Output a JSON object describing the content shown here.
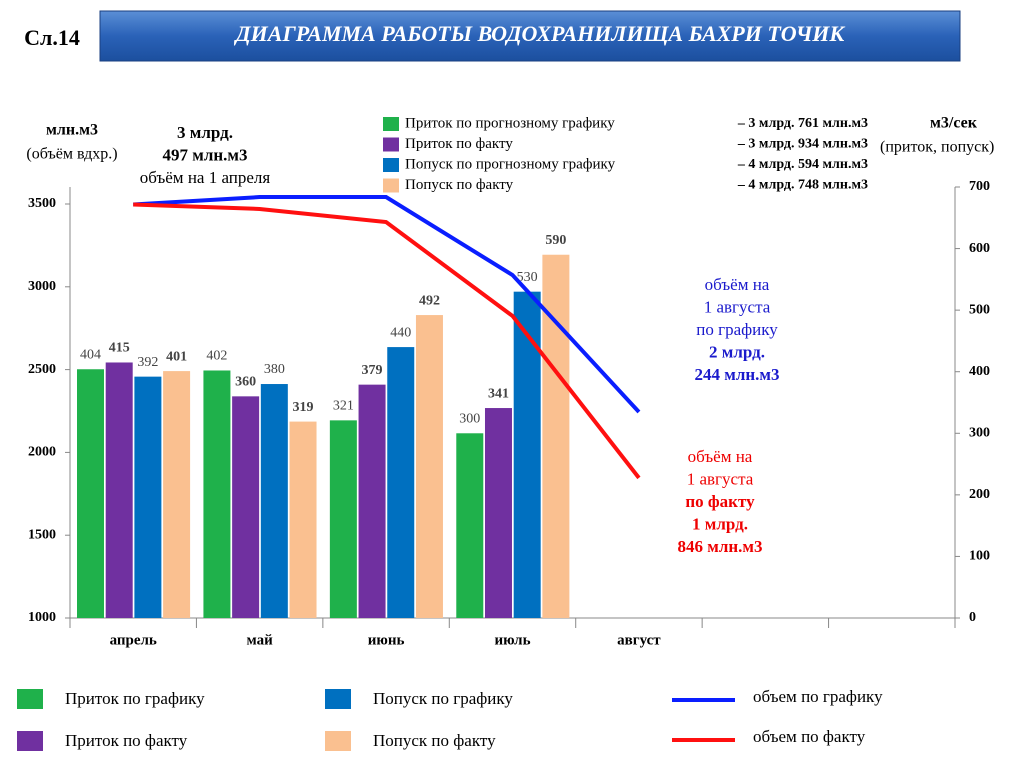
{
  "slide_label": "Сл.14",
  "chart_data": {
    "type": "bar",
    "title": "ДИАГРАММА РАБОТЫ ВОДОХРАНИЛИЩА БАХРИ ТОЧИК",
    "categories": [
      "апрель",
      "май",
      "июнь",
      "июль",
      "август"
    ],
    "ylim": [
      1000,
      3500
    ],
    "yticks": [
      1000,
      1500,
      2000,
      2500,
      3000,
      3500
    ],
    "y2lim": [
      0,
      700
    ],
    "y2ticks": [
      0,
      100,
      200,
      300,
      400,
      500,
      600,
      700
    ],
    "y_label": [
      "млн.м3",
      "(объём вдхр.)"
    ],
    "y2_label": [
      "м3/сек",
      "(приток, попуск)"
    ],
    "series": [
      {
        "name": "Приток по графику",
        "type": "bar",
        "axis": "y2",
        "color": "#1fb14b",
        "label_bold": false,
        "values": [
          404,
          402,
          321,
          300,
          null
        ]
      },
      {
        "name": "Приток по факту",
        "type": "bar",
        "axis": "y2",
        "color": "#7030a0",
        "label_bold": true,
        "values": [
          415,
          360,
          379,
          341,
          null
        ]
      },
      {
        "name": "Попуск по графику",
        "type": "bar",
        "axis": "y2",
        "color": "#0070c0",
        "label_bold": false,
        "values": [
          392,
          380,
          440,
          530,
          null
        ]
      },
      {
        "name": "Попуск по факту",
        "type": "bar",
        "axis": "y2",
        "color": "#fac090",
        "label_bold": true,
        "values": [
          401,
          319,
          492,
          590,
          null
        ]
      },
      {
        "name": "объем по графику",
        "type": "line",
        "color": "#0a1eff",
        "values": [
          3497,
          3542,
          3542,
          3071,
          2244
        ]
      },
      {
        "name": "объем по факту",
        "type": "line",
        "color": "#ff1010",
        "values": [
          3497,
          3470,
          3391,
          2824,
          1846
        ]
      }
    ],
    "top_legend": [
      {
        "name": "Приток по прогнозному графику",
        "total": "– 3 млрд.  761 млн.м3"
      },
      {
        "name": "Приток по факту",
        "total": "–  3 млрд.  934 млн.м3"
      },
      {
        "name": "Попуск по прогнозному  графику",
        "total": "–  4 млрд.  594 млн.м3"
      },
      {
        "name": "Попуск по факту",
        "total": "–  4 млрд.  748 млн.м3"
      }
    ],
    "annotations": [
      {
        "color": "#000000",
        "lines": [
          {
            "text": "3 млрд.",
            "bold": true
          },
          {
            "text": "497 млн.м3",
            "bold": true
          },
          {
            "text": "объём на 1 апреля",
            "bold": false
          }
        ]
      },
      {
        "color": "#1a1acc",
        "lines": [
          {
            "text": "объём на",
            "bold": false
          },
          {
            "text": "1 августа",
            "bold": false
          },
          {
            "text": "по графику",
            "bold": false
          },
          {
            "text": "2 млрд.",
            "bold": true
          },
          {
            "text": "244 млн.м3",
            "bold": true
          }
        ]
      },
      {
        "color": "#ee0000",
        "lines": [
          {
            "text": "объём на",
            "bold": false
          },
          {
            "text": "1 августа",
            "bold": false
          },
          {
            "text": "по факту",
            "bold": true
          },
          {
            "text": "1 млрд.",
            "bold": true
          },
          {
            "text": "846 млн.м3",
            "bold": true
          }
        ]
      }
    ]
  }
}
